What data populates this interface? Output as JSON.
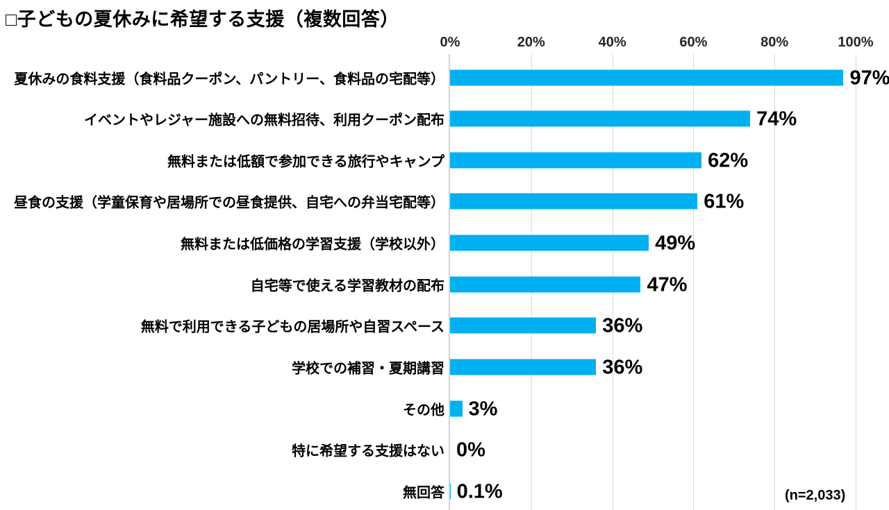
{
  "title": "□子どもの夏休みに希望する支援（複数回答）",
  "sample_note": "(n=2,033)",
  "colors": {
    "bar": "#00B0F0",
    "gridline": "#D9D9D9",
    "axis_line": "#D3D3D3",
    "text": "#000000",
    "axis_text": "#262626",
    "background": "#FFFFFF"
  },
  "chart_data": {
    "type": "bar",
    "orientation": "horizontal",
    "title": "□子どもの夏休みに希望する支援（複数回答）",
    "categories": [
      "夏休みの食料支援（食料品クーポン、パントリー、食料品の宅配等）",
      "イベントやレジャー施設への無料招待、利用クーポン配布",
      "無料または低額で参加できる旅行やキャンプ",
      "昼食の支援（学童保育や居場所での昼食提供、自宅への弁当宅配等）",
      "無料または低価格の学習支援（学校以外）",
      "自宅等で使える学習教材の配布",
      "無料で利用できる子どもの居場所や自習スペース",
      "学校での補習・夏期講習",
      "その他",
      "特に希望する支援はない",
      "無回答"
    ],
    "values": [
      97,
      74,
      62,
      61,
      49,
      47,
      36,
      36,
      3,
      0,
      0.1
    ],
    "value_labels": [
      "97%",
      "74%",
      "62%",
      "61%",
      "49%",
      "47%",
      "36%",
      "36%",
      "3%",
      "0%",
      "0.1%"
    ],
    "xlabel": "",
    "ylabel": "",
    "x_axis": {
      "range": [
        0,
        100
      ],
      "ticks": [
        "0%",
        "20%",
        "40%",
        "60%",
        "80%",
        "100%"
      ],
      "tick_values": [
        0,
        20,
        40,
        60,
        80,
        100
      ],
      "grid": true,
      "position": "top"
    },
    "legend": "none",
    "note": "(n=2,033)",
    "bar_color": "#00B0F0"
  }
}
